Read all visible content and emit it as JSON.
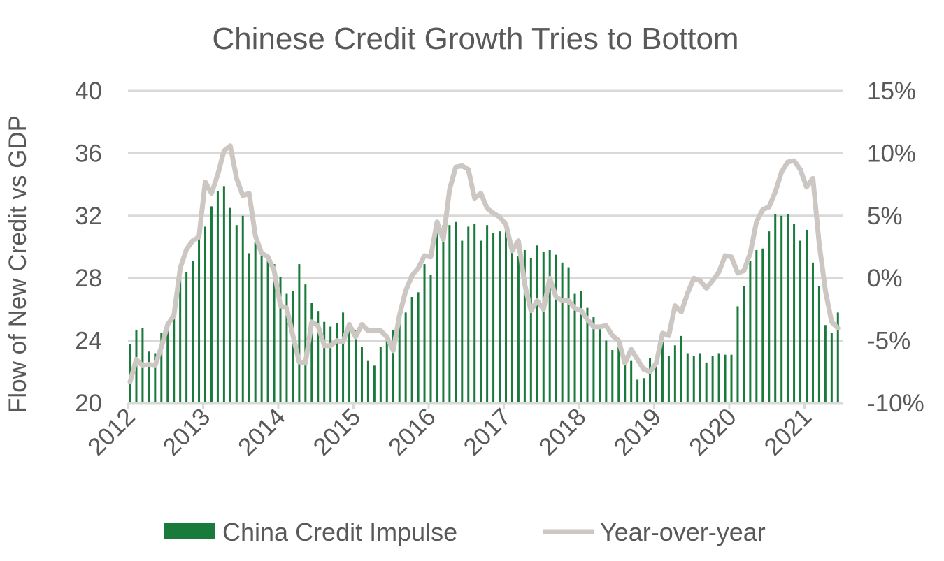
{
  "chart_data": {
    "type": "bar+line",
    "title": "Chinese Credit Growth Tries to Bottom",
    "ylabel": "Flow of New Credit vs GDP",
    "ylim": [
      20,
      40
    ],
    "yticks": [
      "20",
      "24",
      "28",
      "32",
      "36",
      "40"
    ],
    "y2lim": [
      -10,
      15
    ],
    "y2ticks": [
      "-10%",
      "-5%",
      "0%",
      "5%",
      "10%",
      "15%"
    ],
    "xticks": [
      "2012",
      "2013",
      "2014",
      "2015",
      "2016",
      "2017",
      "2018",
      "2019",
      "2020",
      "2021"
    ],
    "x_start": "2012-01",
    "x_frequency": "monthly",
    "grid": true,
    "legend_position": "bottom",
    "colors": {
      "bars": "#1a7a3c",
      "line": "#cdc7c3",
      "grid": "#d9d9d9",
      "text": "#595959"
    },
    "series": [
      {
        "name": "China Credit Impulse",
        "type": "bar",
        "axis": "left",
        "values": [
          23.8,
          24.7,
          24.8,
          23.3,
          23.2,
          24.5,
          25.0,
          26.5,
          28.0,
          28.4,
          29.1,
          31.4,
          31.3,
          32.6,
          33.6,
          33.9,
          32.5,
          31.4,
          32.0,
          29.6,
          30.3,
          29.6,
          29.1,
          28.9,
          28.1,
          27.0,
          27.2,
          28.9,
          27.6,
          26.4,
          25.9,
          25.2,
          24.9,
          25.1,
          25.8,
          24.7,
          24.7,
          23.6,
          22.7,
          22.4,
          23.6,
          24.0,
          24.7,
          25.9,
          25.8,
          26.8,
          27.1,
          28.9,
          28.2,
          30.9,
          31.4,
          31.4,
          31.6,
          30.4,
          31.3,
          31.5,
          30.4,
          31.4,
          30.9,
          31.0,
          31.1,
          29.9,
          29.4,
          29.8,
          29.3,
          30.1,
          29.7,
          29.8,
          29.5,
          29.0,
          28.7,
          27.0,
          27.2,
          26.1,
          25.5,
          24.9,
          24.0,
          23.4,
          23.6,
          22.9,
          22.7,
          21.5,
          21.6,
          22.9,
          22.6,
          23.9,
          23.0,
          23.7,
          24.3,
          23.2,
          23.0,
          23.2,
          22.6,
          23.0,
          23.2,
          23.1,
          23.1,
          26.2,
          27.5,
          29.1,
          29.8,
          29.9,
          31.0,
          32.1,
          32.0,
          32.1,
          31.5,
          30.4,
          31.1,
          29.0,
          27.5,
          25.0,
          24.5,
          25.8
        ]
      },
      {
        "name": "Year-over-year",
        "type": "line",
        "axis": "right",
        "unit": "%",
        "values": [
          -8.3,
          -6.5,
          -7.0,
          -6.9,
          -7.0,
          -5.5,
          -3.7,
          -3.0,
          0.8,
          2.3,
          3.0,
          3.3,
          7.7,
          6.8,
          8.3,
          10.2,
          10.6,
          8.0,
          6.6,
          6.8,
          3.4,
          2.0,
          1.7,
          0.6,
          -2.2,
          -2.4,
          -4.6,
          -6.7,
          -6.8,
          -3.5,
          -3.8,
          -5.4,
          -5.4,
          -5.0,
          -5.1,
          -3.7,
          -4.7,
          -3.7,
          -4.2,
          -4.2,
          -4.2,
          -4.7,
          -5.8,
          -3.0,
          -1.0,
          0.2,
          0.8,
          1.8,
          1.7,
          4.5,
          3.1,
          7.1,
          8.9,
          9.0,
          8.7,
          6.4,
          6.8,
          5.6,
          5.2,
          4.9,
          4.3,
          2.2,
          3.0,
          -0.5,
          -2.6,
          -1.8,
          -2.5,
          0.0,
          -1.5,
          -1.8,
          -1.8,
          -2.4,
          -2.6,
          -3.3,
          -3.9,
          -3.9,
          -3.8,
          -4.6,
          -5.0,
          -6.8,
          -5.7,
          -6.5,
          -7.3,
          -7.5,
          -6.8,
          -4.4,
          -4.6,
          -2.2,
          -2.7,
          -1.2,
          0.0,
          -0.2,
          -0.8,
          -0.2,
          0.5,
          1.8,
          1.7,
          0.4,
          0.6,
          2.0,
          4.5,
          5.5,
          5.7,
          6.9,
          8.5,
          9.3,
          9.4,
          8.7,
          7.3,
          8.0,
          2.8,
          -1.0,
          -3.5,
          -4.0
        ]
      }
    ]
  }
}
